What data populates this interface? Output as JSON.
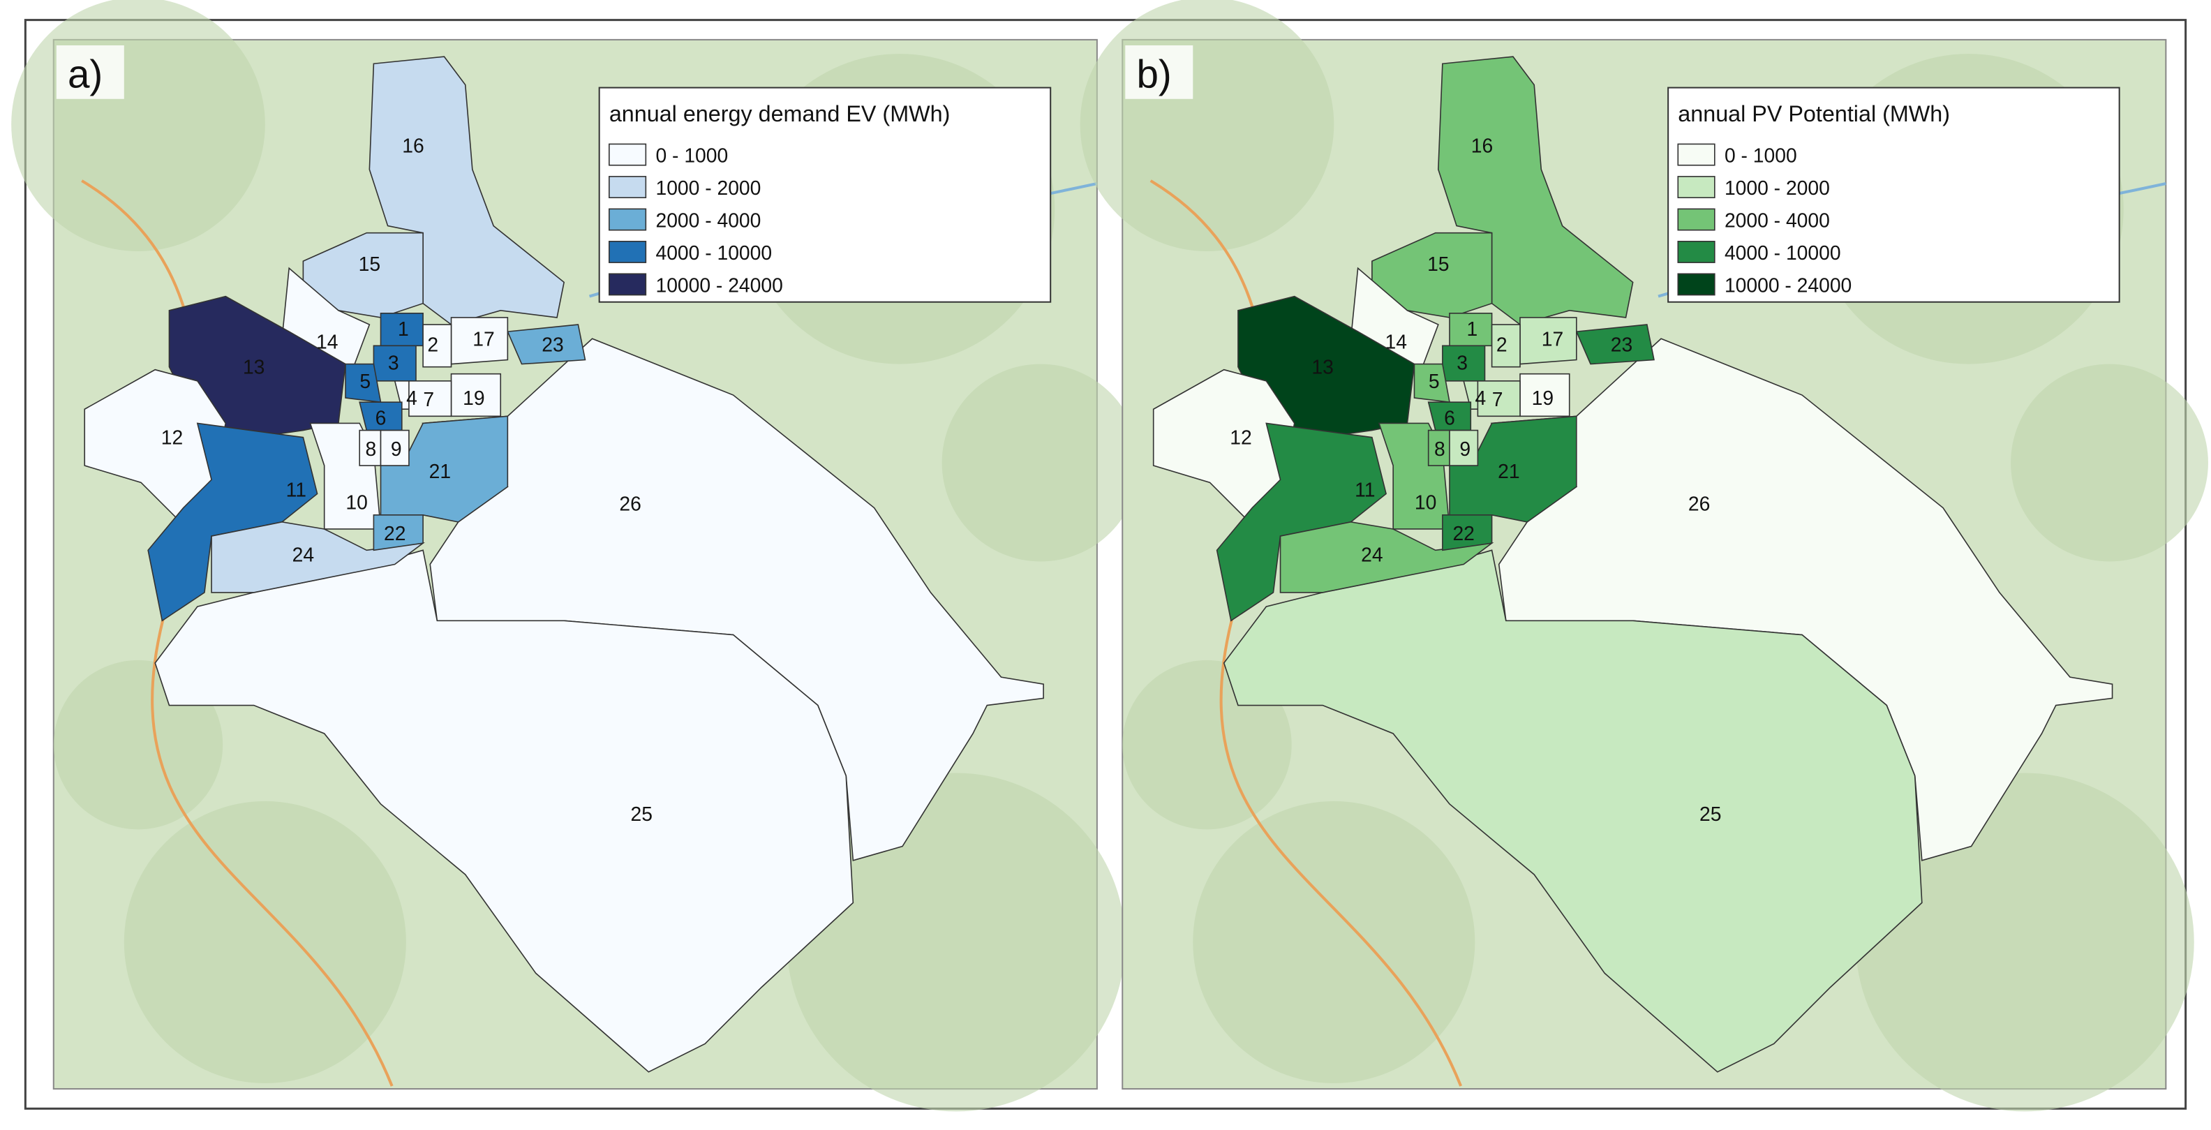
{
  "panels": [
    {
      "label": "a)",
      "legend_title": "annual energy demand EV (MWh)",
      "classes": [
        {
          "label": "0 - 1000",
          "color": "#f7fbff"
        },
        {
          "label": "1000 - 2000",
          "color": "#c6dbef"
        },
        {
          "label": "2000 - 4000",
          "color": "#6baed6"
        },
        {
          "label": "4000 - 10000",
          "color": "#2171b5"
        },
        {
          "label": "10000 - 24000",
          "color": "#262a5e"
        }
      ],
      "regions": [
        {
          "label": "26",
          "color": "#f7fbff"
        },
        {
          "label": "25",
          "color": "#f7fbff"
        },
        {
          "label": "16",
          "color": "#c6dbef"
        },
        {
          "label": "15",
          "color": "#c6dbef"
        },
        {
          "label": "14",
          "color": "#f7fbff"
        },
        {
          "label": "13",
          "color": "#262a5e"
        },
        {
          "label": "12",
          "color": "#f7fbff"
        },
        {
          "label": "11",
          "color": "#2171b5"
        },
        {
          "label": "24",
          "color": "#c6dbef"
        },
        {
          "label": "10",
          "color": "#f7fbff"
        },
        {
          "label": "21",
          "color": "#6baed6"
        },
        {
          "label": "22",
          "color": "#6baed6"
        },
        {
          "label": "23",
          "color": "#6baed6"
        },
        {
          "label": "17",
          "color": "#f7fbff"
        },
        {
          "label": "19",
          "color": "#f7fbff"
        },
        {
          "label": "1",
          "color": "#2171b5"
        },
        {
          "label": "2",
          "color": "#f7fbff"
        },
        {
          "label": "3",
          "color": "#2171b5"
        },
        {
          "label": "4",
          "color": "#f7fbff"
        },
        {
          "label": "5",
          "color": "#2171b5"
        },
        {
          "label": "6",
          "color": "#2171b5"
        },
        {
          "label": "7",
          "color": "#f7fbff"
        },
        {
          "label": "8",
          "color": "#f7fbff"
        },
        {
          "label": "9",
          "color": "#f7fbff"
        }
      ]
    },
    {
      "label": "b)",
      "legend_title": "annual PV Potential (MWh)",
      "classes": [
        {
          "label": "0 - 1000",
          "color": "#f7fcf5"
        },
        {
          "label": "1000 - 2000",
          "color": "#c7e9c0"
        },
        {
          "label": "2000 - 4000",
          "color": "#74c476"
        },
        {
          "label": "4000 - 10000",
          "color": "#238b45"
        },
        {
          "label": "10000 - 24000",
          "color": "#00441b"
        }
      ],
      "regions": [
        {
          "label": "26",
          "color": "#f7fcf5"
        },
        {
          "label": "25",
          "color": "#c7e9c0"
        },
        {
          "label": "16",
          "color": "#74c476"
        },
        {
          "label": "15",
          "color": "#74c476"
        },
        {
          "label": "14",
          "color": "#f7fcf5"
        },
        {
          "label": "13",
          "color": "#00441b"
        },
        {
          "label": "12",
          "color": "#f7fcf5"
        },
        {
          "label": "11",
          "color": "#238b45"
        },
        {
          "label": "24",
          "color": "#74c476"
        },
        {
          "label": "10",
          "color": "#74c476"
        },
        {
          "label": "21",
          "color": "#238b45"
        },
        {
          "label": "22",
          "color": "#238b45"
        },
        {
          "label": "23",
          "color": "#238b45"
        },
        {
          "label": "17",
          "color": "#c7e9c0"
        },
        {
          "label": "19",
          "color": "#f7fcf5"
        },
        {
          "label": "1",
          "color": "#74c476"
        },
        {
          "label": "2",
          "color": "#c7e9c0"
        },
        {
          "label": "3",
          "color": "#238b45"
        },
        {
          "label": "4",
          "color": "#c7e9c0"
        },
        {
          "label": "5",
          "color": "#74c476"
        },
        {
          "label": "6",
          "color": "#238b45"
        },
        {
          "label": "7",
          "color": "#c7e9c0"
        },
        {
          "label": "8",
          "color": "#74c476"
        },
        {
          "label": "9",
          "color": "#c7e9c0"
        }
      ]
    }
  ]
}
